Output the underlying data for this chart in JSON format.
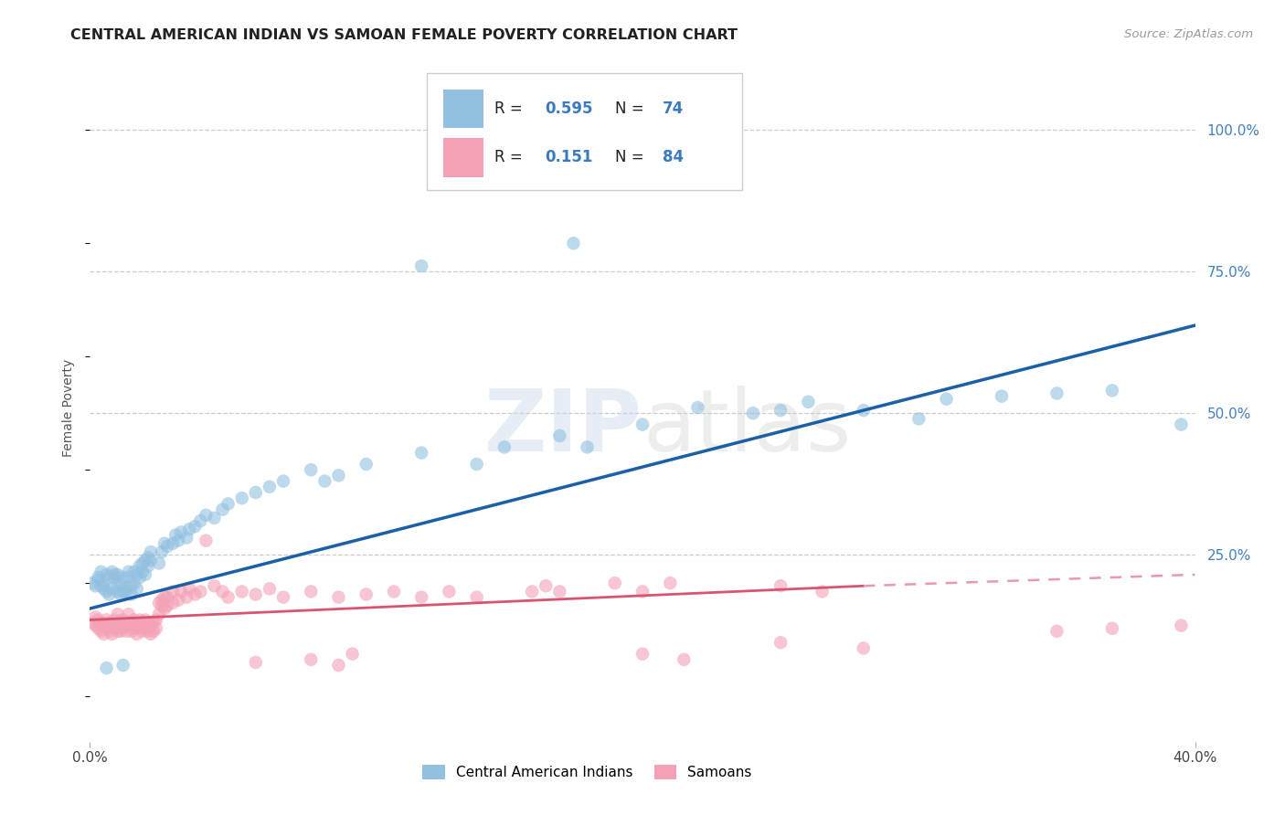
{
  "title": "CENTRAL AMERICAN INDIAN VS SAMOAN FEMALE POVERTY CORRELATION CHART",
  "source": "Source: ZipAtlas.com",
  "ylabel": "Female Poverty",
  "right_yticks": [
    "100.0%",
    "75.0%",
    "50.0%",
    "25.0%"
  ],
  "right_ytick_vals": [
    1.0,
    0.75,
    0.5,
    0.25
  ],
  "xlim": [
    0.0,
    0.4
  ],
  "ylim": [
    -0.08,
    1.1
  ],
  "watermark": "ZIPatlas",
  "blue_color": "#92c0e0",
  "pink_color": "#f4a0b5",
  "line_blue": "#1a5fa8",
  "line_pink_solid": "#d9546e",
  "line_pink_dash": "#e899aa",
  "blue_line": [
    0.0,
    0.4,
    0.155,
    0.655
  ],
  "pink_line_solid": [
    0.0,
    0.28,
    0.135,
    0.195
  ],
  "pink_line_dash": [
    0.28,
    0.4,
    0.195,
    0.215
  ],
  "blue_scatter": [
    [
      0.001,
      0.2
    ],
    [
      0.002,
      0.195
    ],
    [
      0.003,
      0.205
    ],
    [
      0.003,
      0.21
    ],
    [
      0.004,
      0.195
    ],
    [
      0.004,
      0.22
    ],
    [
      0.005,
      0.19
    ],
    [
      0.005,
      0.2
    ],
    [
      0.006,
      0.185
    ],
    [
      0.006,
      0.215
    ],
    [
      0.007,
      0.18
    ],
    [
      0.007,
      0.21
    ],
    [
      0.008,
      0.19
    ],
    [
      0.008,
      0.22
    ],
    [
      0.009,
      0.21
    ],
    [
      0.009,
      0.215
    ],
    [
      0.01,
      0.185
    ],
    [
      0.01,
      0.195
    ],
    [
      0.01,
      0.215
    ],
    [
      0.011,
      0.18
    ],
    [
      0.011,
      0.2
    ],
    [
      0.012,
      0.185
    ],
    [
      0.012,
      0.21
    ],
    [
      0.013,
      0.185
    ],
    [
      0.013,
      0.19
    ],
    [
      0.014,
      0.21
    ],
    [
      0.014,
      0.22
    ],
    [
      0.015,
      0.18
    ],
    [
      0.015,
      0.195
    ],
    [
      0.016,
      0.22
    ],
    [
      0.016,
      0.2
    ],
    [
      0.017,
      0.19
    ],
    [
      0.017,
      0.215
    ],
    [
      0.018,
      0.21
    ],
    [
      0.018,
      0.23
    ],
    [
      0.019,
      0.22
    ],
    [
      0.019,
      0.235
    ],
    [
      0.02,
      0.215
    ],
    [
      0.02,
      0.24
    ],
    [
      0.021,
      0.23
    ],
    [
      0.021,
      0.245
    ],
    [
      0.022,
      0.24
    ],
    [
      0.022,
      0.255
    ],
    [
      0.025,
      0.235
    ],
    [
      0.026,
      0.255
    ],
    [
      0.027,
      0.27
    ],
    [
      0.028,
      0.265
    ],
    [
      0.03,
      0.27
    ],
    [
      0.031,
      0.285
    ],
    [
      0.032,
      0.275
    ],
    [
      0.033,
      0.29
    ],
    [
      0.035,
      0.28
    ],
    [
      0.036,
      0.295
    ],
    [
      0.038,
      0.3
    ],
    [
      0.04,
      0.31
    ],
    [
      0.042,
      0.32
    ],
    [
      0.045,
      0.315
    ],
    [
      0.048,
      0.33
    ],
    [
      0.05,
      0.34
    ],
    [
      0.055,
      0.35
    ],
    [
      0.06,
      0.36
    ],
    [
      0.065,
      0.37
    ],
    [
      0.07,
      0.38
    ],
    [
      0.08,
      0.4
    ],
    [
      0.085,
      0.38
    ],
    [
      0.09,
      0.39
    ],
    [
      0.1,
      0.41
    ],
    [
      0.12,
      0.43
    ],
    [
      0.14,
      0.41
    ],
    [
      0.15,
      0.44
    ],
    [
      0.17,
      0.46
    ],
    [
      0.18,
      0.44
    ],
    [
      0.2,
      0.48
    ],
    [
      0.22,
      0.51
    ],
    [
      0.24,
      0.5
    ],
    [
      0.25,
      0.505
    ],
    [
      0.26,
      0.52
    ],
    [
      0.28,
      0.505
    ],
    [
      0.3,
      0.49
    ],
    [
      0.31,
      0.525
    ],
    [
      0.33,
      0.53
    ],
    [
      0.35,
      0.535
    ],
    [
      0.37,
      0.54
    ],
    [
      0.395,
      0.48
    ],
    [
      0.12,
      0.76
    ],
    [
      0.175,
      0.8
    ],
    [
      0.006,
      0.05
    ],
    [
      0.012,
      0.055
    ]
  ],
  "pink_scatter": [
    [
      0.001,
      0.13
    ],
    [
      0.002,
      0.125
    ],
    [
      0.002,
      0.14
    ],
    [
      0.003,
      0.12
    ],
    [
      0.003,
      0.135
    ],
    [
      0.004,
      0.115
    ],
    [
      0.004,
      0.13
    ],
    [
      0.005,
      0.11
    ],
    [
      0.005,
      0.125
    ],
    [
      0.006,
      0.12
    ],
    [
      0.006,
      0.135
    ],
    [
      0.007,
      0.115
    ],
    [
      0.007,
      0.13
    ],
    [
      0.008,
      0.11
    ],
    [
      0.008,
      0.125
    ],
    [
      0.009,
      0.12
    ],
    [
      0.009,
      0.135
    ],
    [
      0.01,
      0.115
    ],
    [
      0.01,
      0.13
    ],
    [
      0.01,
      0.145
    ],
    [
      0.011,
      0.115
    ],
    [
      0.011,
      0.13
    ],
    [
      0.012,
      0.12
    ],
    [
      0.012,
      0.135
    ],
    [
      0.013,
      0.115
    ],
    [
      0.013,
      0.125
    ],
    [
      0.014,
      0.13
    ],
    [
      0.014,
      0.145
    ],
    [
      0.015,
      0.115
    ],
    [
      0.015,
      0.13
    ],
    [
      0.016,
      0.12
    ],
    [
      0.016,
      0.135
    ],
    [
      0.017,
      0.11
    ],
    [
      0.017,
      0.125
    ],
    [
      0.018,
      0.12
    ],
    [
      0.018,
      0.135
    ],
    [
      0.019,
      0.115
    ],
    [
      0.019,
      0.13
    ],
    [
      0.02,
      0.12
    ],
    [
      0.02,
      0.135
    ],
    [
      0.021,
      0.115
    ],
    [
      0.021,
      0.13
    ],
    [
      0.022,
      0.11
    ],
    [
      0.022,
      0.125
    ],
    [
      0.023,
      0.115
    ],
    [
      0.023,
      0.13
    ],
    [
      0.024,
      0.12
    ],
    [
      0.024,
      0.135
    ],
    [
      0.025,
      0.145
    ],
    [
      0.025,
      0.165
    ],
    [
      0.026,
      0.16
    ],
    [
      0.026,
      0.17
    ],
    [
      0.027,
      0.155
    ],
    [
      0.027,
      0.175
    ],
    [
      0.028,
      0.16
    ],
    [
      0.028,
      0.175
    ],
    [
      0.03,
      0.165
    ],
    [
      0.03,
      0.185
    ],
    [
      0.032,
      0.17
    ],
    [
      0.033,
      0.185
    ],
    [
      0.035,
      0.175
    ],
    [
      0.036,
      0.19
    ],
    [
      0.038,
      0.18
    ],
    [
      0.04,
      0.185
    ],
    [
      0.042,
      0.275
    ],
    [
      0.045,
      0.195
    ],
    [
      0.048,
      0.185
    ],
    [
      0.05,
      0.175
    ],
    [
      0.055,
      0.185
    ],
    [
      0.06,
      0.18
    ],
    [
      0.065,
      0.19
    ],
    [
      0.07,
      0.175
    ],
    [
      0.08,
      0.185
    ],
    [
      0.09,
      0.175
    ],
    [
      0.1,
      0.18
    ],
    [
      0.11,
      0.185
    ],
    [
      0.12,
      0.175
    ],
    [
      0.13,
      0.185
    ],
    [
      0.14,
      0.175
    ],
    [
      0.16,
      0.185
    ],
    [
      0.165,
      0.195
    ],
    [
      0.17,
      0.185
    ],
    [
      0.19,
      0.2
    ],
    [
      0.2,
      0.185
    ],
    [
      0.21,
      0.2
    ],
    [
      0.25,
      0.195
    ],
    [
      0.265,
      0.185
    ],
    [
      0.06,
      0.06
    ],
    [
      0.08,
      0.065
    ],
    [
      0.09,
      0.055
    ],
    [
      0.095,
      0.075
    ],
    [
      0.2,
      0.075
    ],
    [
      0.215,
      0.065
    ],
    [
      0.25,
      0.095
    ],
    [
      0.28,
      0.085
    ],
    [
      0.35,
      0.115
    ],
    [
      0.37,
      0.12
    ],
    [
      0.395,
      0.125
    ]
  ]
}
